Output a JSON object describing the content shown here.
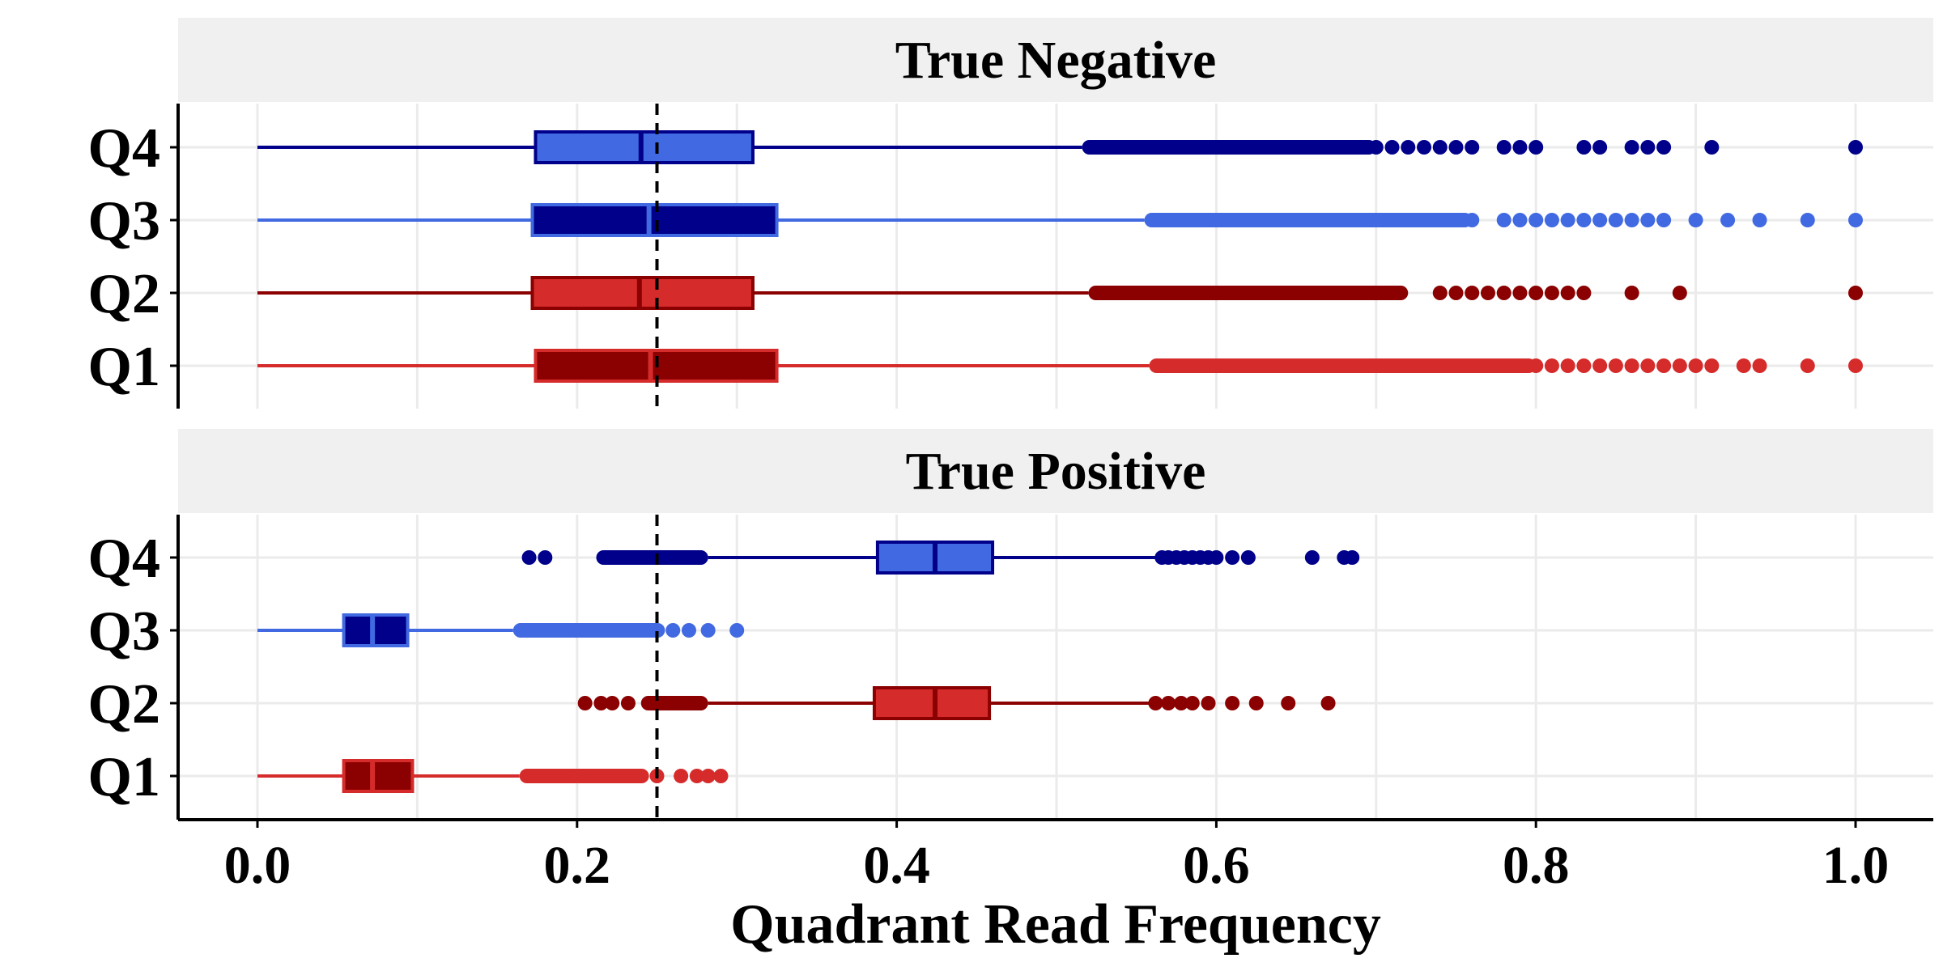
{
  "chart_data": {
    "type": "box",
    "xlabel": "Quadrant Read Frequency",
    "xlim": [
      -0.05,
      1.05
    ],
    "x_ticks": [
      0.0,
      0.2,
      0.4,
      0.6,
      0.8,
      1.0
    ],
    "x_tick_labels": [
      "0.0",
      "0.2",
      "0.4",
      "0.6",
      "0.8",
      "1.0"
    ],
    "reference_line_x": 0.25,
    "categories": [
      "Q4",
      "Q3",
      "Q2",
      "Q1"
    ],
    "grid": true,
    "colors": {
      "Q4": {
        "line": "#00008b",
        "box_fill": "#4169e1",
        "box_stroke": "#00008b",
        "median": "#00008b"
      },
      "Q3": {
        "line": "#4169e1",
        "box_fill": "#00008b",
        "box_stroke": "#4169e1",
        "median": "#4169e1"
      },
      "Q2": {
        "line": "#8b0000",
        "box_fill": "#d62b2b",
        "box_stroke": "#8b0000",
        "median": "#8b0000"
      },
      "Q1": {
        "line": "#d62b2b",
        "box_fill": "#8b0000",
        "box_stroke": "#d62b2b",
        "median": "#d62b2b"
      }
    },
    "panels": [
      {
        "title": "True Negative",
        "groups": [
          {
            "label": "Q4",
            "whisker_low": 0.0,
            "q1": 0.174,
            "median": 0.24,
            "q3": 0.31,
            "whisker_high": 0.516,
            "outlier_range": [
              0.516,
              0.7
            ],
            "outliers": [
              0.7,
              0.71,
              0.72,
              0.73,
              0.74,
              0.75,
              0.76,
              0.78,
              0.79,
              0.8,
              0.83,
              0.84,
              0.86,
              0.87,
              0.88,
              0.91,
              1.0
            ]
          },
          {
            "label": "Q3",
            "whisker_low": 0.0,
            "q1": 0.172,
            "median": 0.245,
            "q3": 0.325,
            "whisker_high": 0.555,
            "outlier_range": [
              0.555,
              0.76
            ],
            "outliers": [
              0.76,
              0.78,
              0.79,
              0.8,
              0.81,
              0.82,
              0.83,
              0.84,
              0.85,
              0.86,
              0.87,
              0.88,
              0.9,
              0.92,
              0.94,
              0.97,
              1.0
            ]
          },
          {
            "label": "Q2",
            "whisker_low": 0.0,
            "q1": 0.172,
            "median": 0.239,
            "q3": 0.31,
            "whisker_high": 0.52,
            "outlier_range": [
              0.52,
              0.72
            ],
            "outliers": [
              0.74,
              0.75,
              0.76,
              0.77,
              0.78,
              0.79,
              0.8,
              0.81,
              0.82,
              0.83,
              0.86,
              0.89,
              1.0
            ]
          },
          {
            "label": "Q1",
            "whisker_low": 0.0,
            "q1": 0.174,
            "median": 0.246,
            "q3": 0.325,
            "whisker_high": 0.558,
            "outlier_range": [
              0.558,
              0.8
            ],
            "outliers": [
              0.8,
              0.81,
              0.82,
              0.83,
              0.84,
              0.85,
              0.86,
              0.87,
              0.88,
              0.89,
              0.9,
              0.91,
              0.93,
              0.94,
              0.97,
              1.0
            ]
          }
        ]
      },
      {
        "title": "True Positive",
        "groups": [
          {
            "label": "Q4",
            "whisker_low": 0.282,
            "q1": 0.388,
            "median": 0.424,
            "q3": 0.46,
            "whisker_high": 0.566,
            "outlier_range": [
              0.212,
              0.282
            ],
            "outliers": [
              0.17,
              0.18,
              0.566,
              0.57,
              0.575,
              0.58,
              0.585,
              0.59,
              0.595,
              0.6,
              0.61,
              0.62,
              0.66,
              0.68,
              0.685
            ]
          },
          {
            "label": "Q3",
            "whisker_low": 0.0,
            "q1": 0.054,
            "median": 0.072,
            "q3": 0.094,
            "whisker_high": 0.16,
            "outlier_range": [
              0.16,
              0.255
            ],
            "outliers": [
              0.26,
              0.27,
              0.282,
              0.3
            ]
          },
          {
            "label": "Q2",
            "whisker_low": 0.282,
            "q1": 0.386,
            "median": 0.424,
            "q3": 0.458,
            "whisker_high": 0.562,
            "outlier_range": [
              0.24,
              0.282
            ],
            "outliers": [
              0.205,
              0.215,
              0.222,
              0.232,
              0.562,
              0.57,
              0.578,
              0.585,
              0.595,
              0.61,
              0.625,
              0.645,
              0.67
            ]
          },
          {
            "label": "Q1",
            "whisker_low": 0.0,
            "q1": 0.054,
            "median": 0.072,
            "q3": 0.097,
            "whisker_high": 0.164,
            "outlier_range": [
              0.164,
              0.245
            ],
            "outliers": [
              0.25,
              0.265,
              0.275,
              0.282,
              0.29
            ]
          }
        ]
      }
    ]
  }
}
